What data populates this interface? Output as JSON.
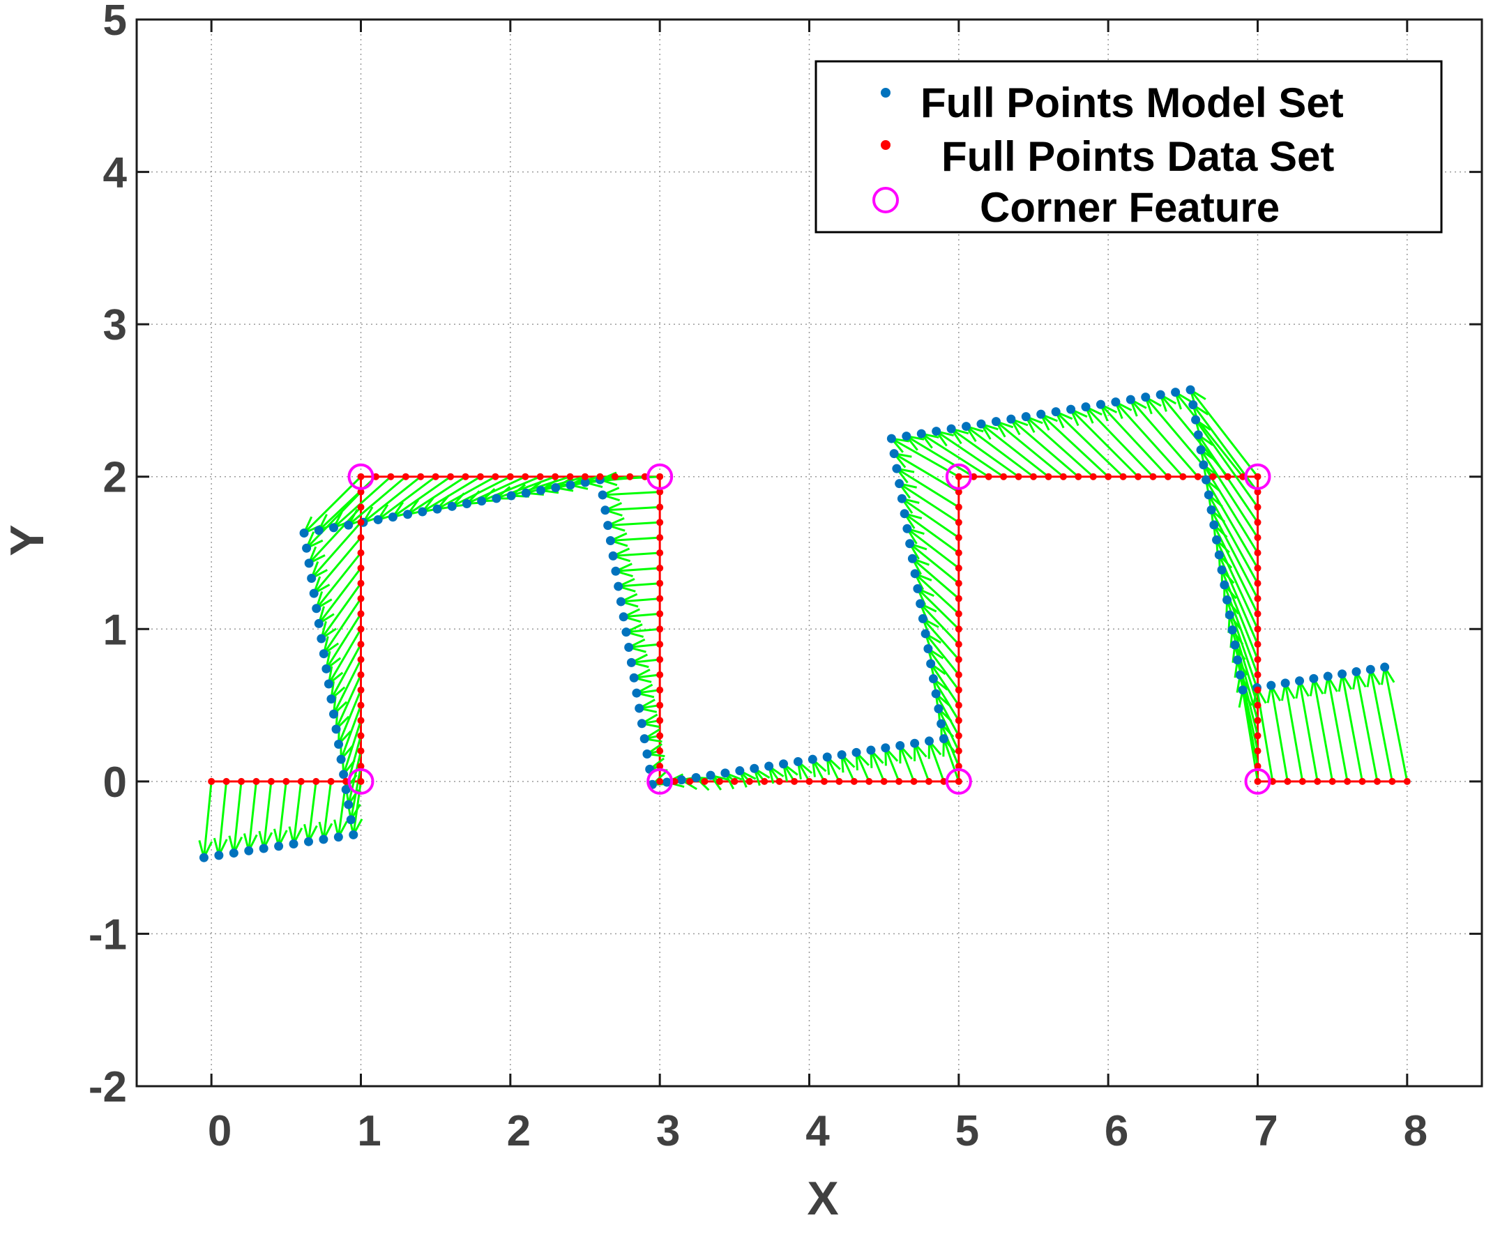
{
  "chart_data": {
    "type": "scatter",
    "title": "",
    "xlabel": "X",
    "ylabel": "Y",
    "xlim": [
      -0.5,
      8.5
    ],
    "ylim": [
      -2,
      5
    ],
    "xticks": [
      0,
      1,
      2,
      3,
      4,
      5,
      6,
      7,
      8
    ],
    "yticks": [
      -2,
      -1,
      0,
      1,
      2,
      3,
      4,
      5
    ],
    "xtick_labels": [
      "0",
      "1",
      "2",
      "3",
      "4",
      "5",
      "6",
      "7",
      "8"
    ],
    "ytick_labels": [
      "-2",
      "-1",
      "0",
      "1",
      "2",
      "3",
      "4",
      "5"
    ],
    "grid": true,
    "legend_position": "top-right",
    "colors": {
      "model": "#0072BD",
      "data": "#FF0000",
      "corner": "#FF00FF",
      "correspondence": "#00FF00"
    },
    "legend": [
      {
        "label": "Full Points Model Set",
        "marker": "dot",
        "color": "#0072BD"
      },
      {
        "label": "Full Points Data Set",
        "marker": "dot",
        "color": "#FF0000"
      },
      {
        "label": "Corner Feature",
        "marker": "circle",
        "color": "#FF00FF"
      }
    ],
    "series": [
      {
        "name": "Full Points Data Set",
        "segments": [
          {
            "from": [
              0,
              0
            ],
            "to": [
              1,
              0
            ],
            "points": 11
          },
          {
            "from": [
              1,
              0
            ],
            "to": [
              1,
              2
            ],
            "points": 21
          },
          {
            "from": [
              1,
              2
            ],
            "to": [
              3,
              2
            ],
            "points": 21
          },
          {
            "from": [
              3,
              2
            ],
            "to": [
              3,
              0
            ],
            "points": 21
          },
          {
            "from": [
              3,
              0
            ],
            "to": [
              5,
              0
            ],
            "points": 21
          },
          {
            "from": [
              5,
              0
            ],
            "to": [
              5,
              2
            ],
            "points": 21
          },
          {
            "from": [
              5,
              2
            ],
            "to": [
              7,
              2
            ],
            "points": 21
          },
          {
            "from": [
              7,
              2
            ],
            "to": [
              7,
              0
            ],
            "points": 21
          },
          {
            "from": [
              7,
              0
            ],
            "to": [
              8,
              0
            ],
            "points": 11
          }
        ]
      },
      {
        "name": "Full Points Model Set",
        "segments": [
          {
            "from": [
              -0.05,
              -0.5
            ],
            "to": [
              0.95,
              -0.35
            ],
            "points": 11
          },
          {
            "from": [
              0.95,
              -0.35
            ],
            "to": [
              0.62,
              1.63
            ],
            "points": 21
          },
          {
            "from": [
              0.62,
              1.63
            ],
            "to": [
              2.6,
              1.98
            ],
            "points": 21
          },
          {
            "from": [
              2.6,
              1.98
            ],
            "to": [
              2.95,
              -0.02
            ],
            "points": 21
          },
          {
            "from": [
              2.95,
              -0.02
            ],
            "to": [
              4.9,
              0.28
            ],
            "points": 21
          },
          {
            "from": [
              4.9,
              0.28
            ],
            "to": [
              4.55,
              2.25
            ],
            "points": 21
          },
          {
            "from": [
              4.55,
              2.25
            ],
            "to": [
              6.55,
              2.57
            ],
            "points": 21
          },
          {
            "from": [
              6.55,
              2.57
            ],
            "to": [
              6.9,
              0.6
            ],
            "points": 21
          },
          {
            "from": [
              6.9,
              0.6
            ],
            "to": [
              7.85,
              0.75
            ],
            "points": 11
          }
        ]
      },
      {
        "name": "Corner Feature",
        "points": [
          [
            1,
            0
          ],
          [
            1,
            2
          ],
          [
            3,
            2
          ],
          [
            3,
            0
          ],
          [
            5,
            0
          ],
          [
            5,
            2
          ],
          [
            7,
            2
          ],
          [
            7,
            0
          ]
        ]
      }
    ]
  }
}
